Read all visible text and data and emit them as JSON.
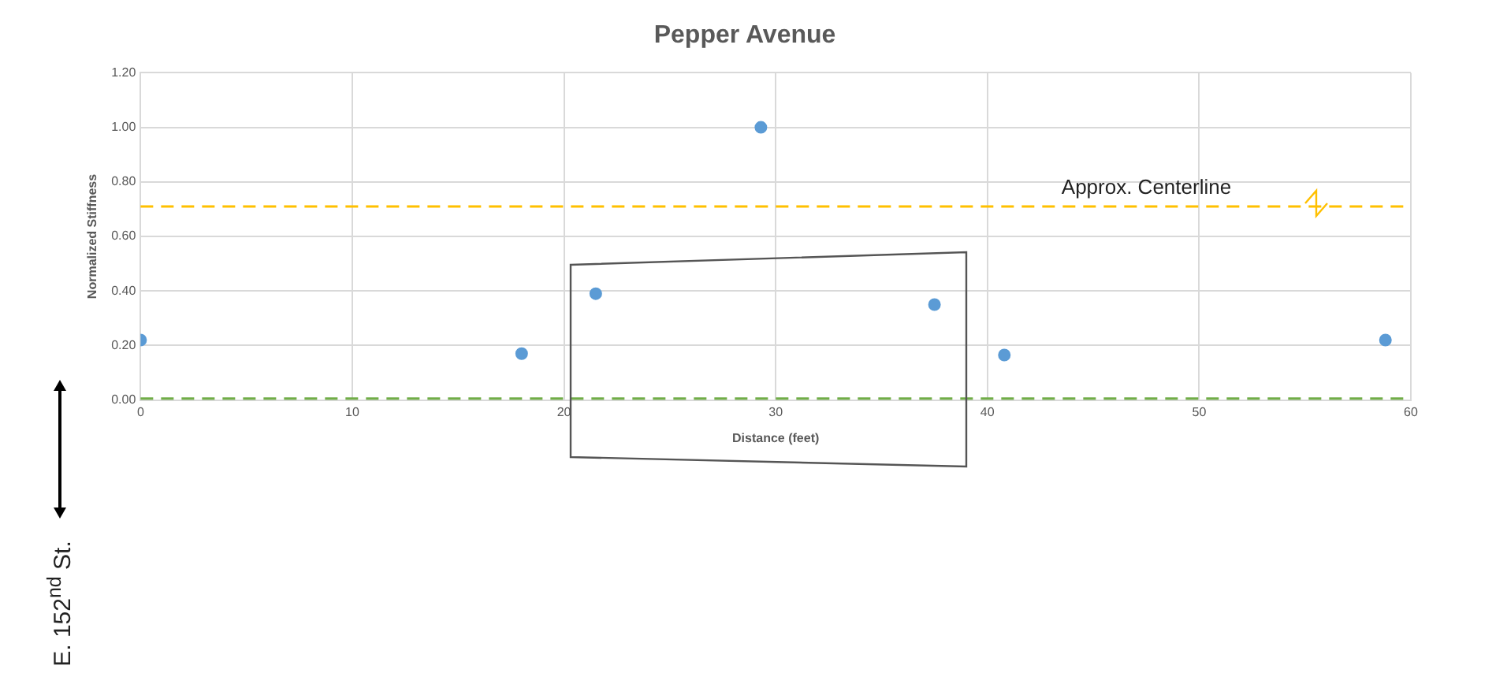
{
  "chart_data": {
    "type": "scatter",
    "title": "Pepper Avenue",
    "xlabel": "Distance (feet)",
    "ylabel": "Normalized Stiffness",
    "series": [
      {
        "color": "#5b9bd5",
        "x": [
          0,
          18,
          21.5,
          29.3,
          37.5,
          40.8,
          58.8
        ],
        "values": [
          0.22,
          0.17,
          0.39,
          1.0,
          0.35,
          0.165,
          0.22
        ]
      }
    ],
    "xlim": [
      0,
      60
    ],
    "xticks": [
      0,
      10,
      20,
      30,
      40,
      50,
      60
    ],
    "ylim": [
      0,
      1.2
    ],
    "yticks": [
      {
        "value": 0,
        "label": "0.00"
      },
      {
        "value": 0.2,
        "label": "0.20"
      },
      {
        "value": 0.4,
        "label": "0.40"
      },
      {
        "value": 0.6,
        "label": "0.60"
      },
      {
        "value": 0.8,
        "label": "0.80"
      },
      {
        "value": 1.0,
        "label": "1.00"
      },
      {
        "value": 1.2,
        "label": "1.20"
      }
    ],
    "ref_lines": [
      {
        "axis": "y",
        "value": 0.71,
        "label": "Approx. Centerline",
        "color": "#ffc000",
        "line_style": "dashed"
      },
      {
        "axis": "y",
        "value": 0.005,
        "color": "#70ad47",
        "line_style": "dashed"
      }
    ],
    "annotations": [
      "E. 152$^{nd}$ St."
    ],
    "grid": true,
    "marker": "circle",
    "legend": false
  }
}
